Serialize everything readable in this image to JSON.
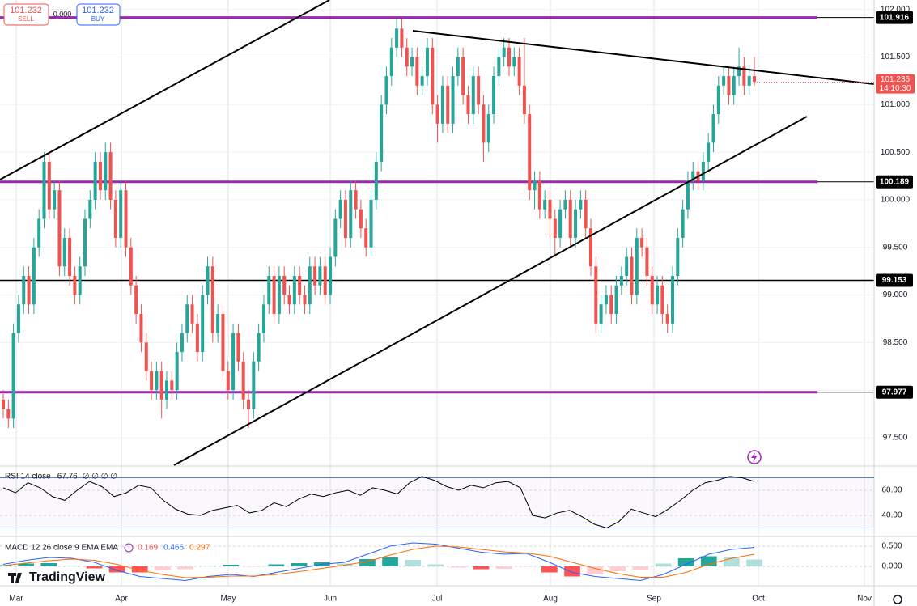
{
  "chart_data": {
    "type": "candlestick",
    "up_color": "#26a69a",
    "down_color": "#ef5350",
    "candles": {
      "open": [
        97.9,
        97.8,
        97.7,
        98.6,
        98.9,
        99.2,
        98.9,
        99.5,
        99.8,
        100.4,
        99.9,
        100.1,
        99.3,
        99.6,
        99.2,
        99.0,
        99.3,
        99.8,
        100.0,
        100.4,
        100.1,
        100.5,
        100.0,
        99.6,
        100.1,
        99.5,
        99.1,
        98.8,
        98.5,
        98.2,
        98.0,
        98.2,
        97.9,
        98.1,
        98.0,
        98.4,
        98.6,
        98.9,
        98.7,
        98.4,
        99.0,
        99.3,
        98.6,
        98.8,
        98.2,
        98.0,
        98.6,
        98.3,
        97.9,
        97.8,
        98.3,
        98.6,
        98.9,
        99.2,
        98.8,
        99.2,
        99.0,
        98.9,
        99.2,
        99.0,
        98.9,
        99.3,
        99.1,
        99.3,
        99.0,
        99.4,
        99.8,
        100.0,
        99.6,
        100.1,
        99.9,
        99.7,
        99.5,
        100.0,
        100.4,
        101.0,
        101.3,
        101.6,
        101.8,
        101.6,
        101.4,
        101.5,
        101.2,
        101.3,
        101.6,
        101.0,
        100.8,
        101.2,
        100.8,
        101.3,
        101.5,
        101.1,
        100.9,
        101.3,
        101.0,
        100.6,
        100.9,
        101.3,
        101.5,
        101.6,
        101.4,
        101.5,
        101.2,
        100.9,
        100.1,
        100.2,
        99.9,
        100.0,
        99.8,
        99.6,
        99.9,
        100.0,
        99.6,
        99.9,
        100.0,
        99.7,
        99.3,
        98.7,
        98.9,
        99.0,
        98.8,
        99.1,
        99.2,
        99.4,
        99.0,
        99.6,
        99.5,
        99.2,
        98.9,
        99.1,
        98.8,
        98.7,
        99.2,
        99.6,
        99.9,
        100.2,
        100.3,
        100.2,
        100.4,
        100.6,
        100.9,
        101.2,
        101.3,
        101.1,
        101.3,
        101.4,
        101.2,
        101.3
      ],
      "high": [
        98.0,
        97.9,
        98.7,
        99.0,
        99.3,
        99.3,
        99.6,
        99.9,
        100.5,
        100.5,
        100.2,
        100.2,
        99.7,
        99.7,
        99.3,
        99.4,
        99.9,
        100.1,
        100.5,
        100.5,
        100.6,
        100.6,
        100.1,
        100.2,
        100.2,
        99.6,
        99.2,
        98.9,
        98.6,
        98.3,
        98.3,
        98.3,
        98.2,
        98.2,
        98.5,
        98.7,
        99.0,
        99.0,
        98.8,
        99.1,
        99.4,
        99.4,
        98.9,
        98.9,
        98.3,
        98.7,
        98.7,
        98.4,
        98.0,
        98.4,
        98.7,
        99.0,
        99.3,
        99.3,
        99.3,
        99.3,
        99.1,
        99.3,
        99.3,
        99.1,
        99.4,
        99.4,
        99.4,
        99.4,
        99.5,
        99.9,
        100.1,
        100.1,
        100.2,
        100.2,
        100.0,
        99.8,
        100.1,
        100.5,
        101.1,
        101.4,
        101.7,
        101.9,
        101.9,
        101.7,
        101.6,
        101.6,
        101.4,
        101.7,
        101.7,
        101.1,
        101.3,
        101.3,
        101.4,
        101.6,
        101.6,
        101.2,
        101.4,
        101.4,
        101.1,
        101.0,
        101.4,
        101.6,
        101.7,
        101.7,
        101.6,
        101.6,
        101.7,
        101.0,
        100.3,
        100.3,
        100.1,
        100.1,
        99.9,
        100.0,
        100.1,
        100.1,
        100.0,
        100.1,
        100.1,
        99.8,
        99.4,
        99.0,
        99.1,
        99.1,
        99.2,
        99.3,
        99.5,
        99.5,
        99.7,
        99.7,
        99.6,
        99.3,
        99.2,
        99.2,
        98.9,
        99.3,
        99.7,
        100.0,
        100.3,
        100.4,
        100.4,
        100.5,
        100.7,
        101.0,
        101.3,
        101.4,
        101.4,
        101.4,
        101.6,
        101.5,
        101.4,
        101.5
      ],
      "low": [
        97.7,
        97.6,
        97.6,
        98.5,
        98.8,
        98.8,
        98.8,
        99.4,
        99.7,
        99.8,
        99.8,
        99.2,
        99.2,
        99.1,
        98.9,
        98.9,
        99.2,
        99.7,
        99.9,
        100.0,
        100.0,
        99.9,
        99.5,
        99.5,
        99.4,
        99.0,
        98.7,
        98.4,
        98.1,
        97.9,
        97.9,
        97.7,
        97.8,
        97.9,
        97.9,
        98.3,
        98.5,
        98.6,
        98.3,
        98.3,
        98.9,
        98.5,
        98.5,
        98.1,
        97.9,
        97.9,
        98.2,
        97.8,
        97.6,
        97.7,
        98.2,
        98.5,
        98.8,
        98.7,
        98.7,
        98.9,
        98.8,
        98.8,
        98.9,
        98.8,
        98.8,
        99.0,
        99.0,
        98.9,
        98.9,
        99.3,
        99.7,
        99.5,
        99.5,
        99.8,
        99.6,
        99.4,
        99.4,
        99.9,
        100.3,
        100.9,
        101.2,
        101.5,
        101.5,
        101.3,
        101.3,
        101.1,
        101.1,
        101.2,
        100.9,
        100.6,
        100.7,
        100.7,
        100.7,
        101.2,
        101.0,
        100.8,
        100.8,
        100.9,
        100.4,
        100.5,
        100.8,
        101.2,
        101.4,
        101.3,
        101.3,
        101.1,
        100.8,
        100.0,
        99.9,
        99.8,
        99.8,
        99.6,
        99.4,
        99.5,
        99.8,
        99.5,
        99.5,
        99.8,
        99.6,
        99.2,
        98.6,
        98.6,
        98.8,
        98.7,
        98.7,
        99.0,
        99.1,
        98.9,
        98.9,
        99.4,
        99.1,
        98.8,
        98.8,
        98.7,
        98.6,
        98.6,
        99.1,
        99.5,
        99.8,
        100.1,
        100.1,
        100.1,
        100.3,
        100.5,
        100.8,
        101.1,
        101.0,
        101.0,
        101.2,
        101.1,
        101.1,
        101.2
      ],
      "close": [
        97.8,
        97.7,
        98.6,
        98.9,
        99.2,
        98.9,
        99.5,
        99.8,
        100.4,
        99.9,
        100.1,
        99.3,
        99.6,
        99.2,
        99.0,
        99.3,
        99.8,
        100.0,
        100.4,
        100.1,
        100.5,
        100.0,
        99.6,
        100.1,
        99.5,
        99.1,
        98.8,
        98.5,
        98.2,
        98.0,
        98.2,
        97.9,
        98.1,
        98.0,
        98.4,
        98.6,
        98.9,
        98.7,
        98.4,
        99.0,
        99.3,
        98.6,
        98.8,
        98.2,
        98.0,
        98.6,
        98.3,
        97.9,
        97.8,
        98.3,
        98.6,
        98.9,
        99.2,
        98.8,
        99.2,
        99.0,
        98.9,
        99.2,
        99.0,
        98.9,
        99.3,
        99.1,
        99.3,
        99.0,
        99.4,
        99.8,
        100.0,
        99.6,
        100.1,
        99.9,
        99.7,
        99.5,
        100.0,
        100.4,
        101.0,
        101.3,
        101.6,
        101.8,
        101.6,
        101.4,
        101.5,
        101.2,
        101.3,
        101.6,
        101.0,
        100.8,
        101.2,
        100.8,
        101.3,
        101.5,
        101.1,
        100.9,
        101.3,
        101.0,
        100.6,
        100.9,
        101.3,
        101.5,
        101.6,
        101.4,
        101.5,
        101.2,
        100.9,
        100.1,
        100.2,
        99.9,
        100.0,
        99.8,
        99.6,
        99.9,
        100.0,
        99.6,
        99.9,
        100.0,
        99.7,
        99.3,
        98.7,
        98.9,
        99.0,
        98.8,
        99.1,
        99.2,
        99.4,
        99.0,
        99.6,
        99.5,
        99.2,
        98.9,
        99.1,
        98.8,
        98.7,
        99.2,
        99.6,
        99.9,
        100.2,
        100.3,
        100.2,
        100.4,
        100.6,
        100.9,
        101.2,
        101.3,
        101.1,
        101.3,
        101.4,
        101.2,
        101.3,
        101.24
      ]
    },
    "ylim": [
      97.21,
      102.1
    ],
    "yticks": [
      {
        "value": 102,
        "label": "102.000"
      },
      {
        "value": 101.5,
        "label": "101.500"
      },
      {
        "value": 101,
        "label": "101.000"
      },
      {
        "value": 100.5,
        "label": "100.500"
      },
      {
        "value": 100,
        "label": "100.000"
      },
      {
        "value": 99.5,
        "label": "99.500"
      },
      {
        "value": 99,
        "label": "99.000"
      },
      {
        "value": 98.5,
        "label": "98.500"
      },
      {
        "value": 98,
        "label": "98.000"
      },
      {
        "value": 97.5,
        "label": "97.500"
      }
    ],
    "grid": true,
    "levels": [
      {
        "value": 101.916,
        "color": "#9c27b0"
      },
      {
        "value": 100.189,
        "color": "#9c27b0"
      },
      {
        "value": 99.153,
        "color": "#000000"
      },
      {
        "value": 97.977,
        "color": "#9c27b0"
      }
    ],
    "last_price": {
      "value": 101.236,
      "time": "14:10:30"
    },
    "months": [
      "Mar",
      "Apr",
      "May",
      "Jun",
      "Jul",
      "Aug",
      "Sep",
      "Oct",
      "Nov"
    ],
    "rsi": {
      "label": "RSI 14 close",
      "value": 67.76,
      "extra": "∅ ∅ ∅ ∅",
      "color": "#000000",
      "ylim": [
        23.9,
        78.7
      ],
      "yticks": [
        {
          "value": 60,
          "label": "60.00"
        },
        {
          "value": 40,
          "label": "40.00"
        }
      ],
      "bands": [
        70,
        30
      ],
      "values": [
        62,
        58,
        66,
        62,
        55,
        52,
        60,
        67,
        63,
        55,
        58,
        64,
        62,
        52,
        45,
        41,
        40,
        44,
        46,
        48,
        42,
        44,
        50,
        47,
        53,
        57,
        55,
        58,
        60,
        56,
        62,
        60,
        57,
        66,
        71,
        68,
        63,
        60,
        64,
        62,
        66,
        67,
        62,
        40,
        38,
        42,
        44,
        39,
        33,
        30,
        35,
        45,
        42,
        39,
        45,
        52,
        60,
        66,
        68,
        71,
        70,
        67
      ]
    },
    "macd": {
      "label": "MACD 12 26 close 9 EMA EMA",
      "ylim": [
        -0.46,
        0.74
      ],
      "yticks": [
        {
          "value": 0.5,
          "label": "0.500"
        },
        {
          "value": 0,
          "label": "0.000"
        }
      ],
      "histogram": {
        "value": 0.169,
        "color": "#ef5350",
        "values": [
          0.03,
          0.07,
          0.08,
          0.02,
          -0.05,
          -0.15,
          -0.15,
          -0.1,
          -0.07,
          0.02,
          0.04,
          -0.01,
          0.05,
          0.08,
          0.1,
          0.07,
          0.18,
          0.22,
          0.16,
          0.05,
          -0.03,
          -0.07,
          -0.06,
          -0.01,
          -0.15,
          -0.25,
          -0.2,
          -0.12,
          -0.08,
          0.07,
          0.2,
          0.25,
          0.22,
          0.17
        ]
      },
      "macd_line": {
        "value": 0.466,
        "color": "#2962ff",
        "values": [
          0.05,
          0.15,
          0.22,
          0.2,
          0.1,
          -0.1,
          -0.25,
          -0.3,
          -0.35,
          -0.25,
          -0.2,
          -0.25,
          -0.15,
          -0.05,
          0.05,
          0.1,
          0.3,
          0.5,
          0.58,
          0.55,
          0.45,
          0.35,
          0.3,
          0.32,
          0.1,
          -0.15,
          -0.25,
          -0.3,
          -0.35,
          -0.2,
          0.05,
          0.3,
          0.42,
          0.47
        ]
      },
      "signal": {
        "value": 0.297,
        "color": "#ff6d00",
        "values": [
          0.02,
          0.08,
          0.14,
          0.18,
          0.15,
          0.05,
          -0.1,
          -0.2,
          -0.28,
          -0.27,
          -0.24,
          -0.24,
          -0.2,
          -0.13,
          -0.05,
          0.03,
          0.12,
          0.28,
          0.42,
          0.5,
          0.48,
          0.42,
          0.36,
          0.33,
          0.25,
          0.1,
          -0.05,
          -0.18,
          -0.27,
          -0.27,
          -0.15,
          0.05,
          0.2,
          0.3
        ]
      }
    }
  },
  "widget": {
    "sell_price": "101.232",
    "sell_label": "SELL",
    "spread": "0.000",
    "buy_price": "101.232",
    "buy_label": "BUY"
  },
  "logo": "TradingView"
}
